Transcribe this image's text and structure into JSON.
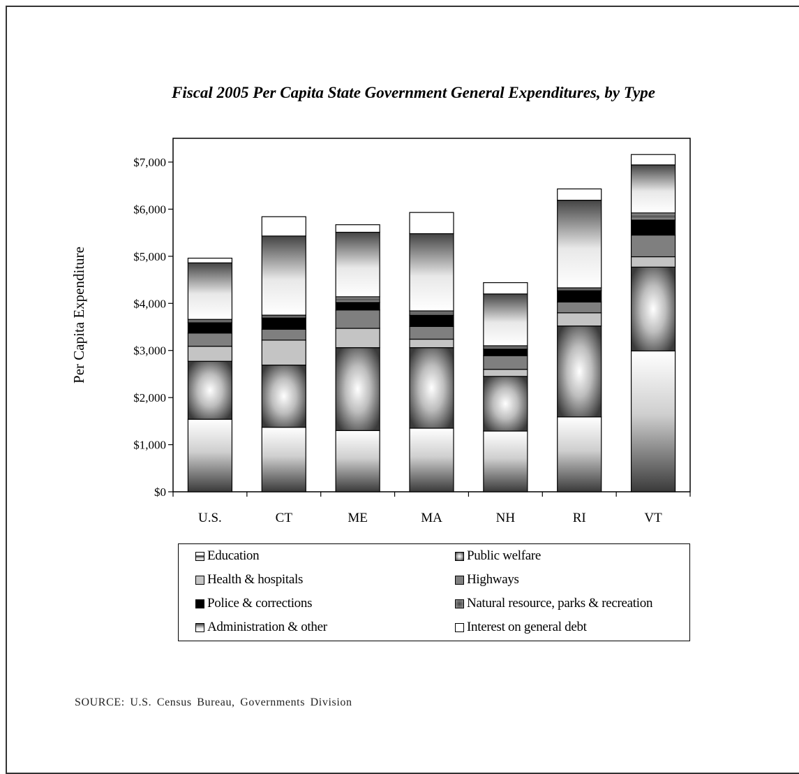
{
  "chart_data": {
    "type": "bar",
    "stacked": true,
    "title": "Fiscal 2005 Per Capita State Government General Expenditures, by Type",
    "xlabel": "",
    "ylabel": "Per Capita Expenditure",
    "ylim": [
      0,
      7500
    ],
    "yticks": [
      0,
      1000,
      2000,
      3000,
      4000,
      5000,
      6000,
      7000
    ],
    "ytick_labels": [
      "$0",
      "$1,000",
      "$2,000",
      "$3,000",
      "$4,000",
      "$5,000",
      "$6,000",
      "$7,000"
    ],
    "grid": false,
    "legend_position": "bottom",
    "categories": [
      "U.S.",
      "CT",
      "ME",
      "MA",
      "NH",
      "RI",
      "VT"
    ],
    "series": [
      {
        "name": "Education",
        "values": [
          1540,
          1370,
          1300,
          1350,
          1290,
          1590,
          2990
        ]
      },
      {
        "name": "Public welfare",
        "values": [
          1230,
          1320,
          1760,
          1710,
          1160,
          1930,
          1780
        ]
      },
      {
        "name": "Health & hospitals",
        "values": [
          320,
          530,
          410,
          180,
          150,
          280,
          220
        ]
      },
      {
        "name": "Highways",
        "values": [
          280,
          230,
          390,
          270,
          290,
          230,
          460
        ]
      },
      {
        "name": "Police & corrections",
        "values": [
          220,
          240,
          160,
          240,
          140,
          240,
          320
        ]
      },
      {
        "name": "Natural resource, parks & recreation",
        "values": [
          70,
          60,
          120,
          90,
          70,
          60,
          150
        ]
      },
      {
        "name": "Administration & other",
        "values": [
          1200,
          1680,
          1370,
          1640,
          1100,
          1860,
          1020
        ]
      },
      {
        "name": "Interest on general debt",
        "values": [
          100,
          410,
          160,
          450,
          240,
          240,
          220
        ]
      }
    ]
  },
  "legend": {
    "items": [
      {
        "label": "Education",
        "color": "#bdbdbd"
      },
      {
        "label": "Public welfare",
        "color": "#555555"
      },
      {
        "label": "Health & hospitals",
        "color": "#c4c4c4"
      },
      {
        "label": "Highways",
        "color": "#7f7f7f"
      },
      {
        "label": "Police & corrections",
        "color": "#000000"
      },
      {
        "label": "Natural resource, parks & recreation",
        "color": "#808080"
      },
      {
        "label": "Administration & other",
        "color": "#8a8a8a"
      },
      {
        "label": "Interest on general debt",
        "color": "#ffffff"
      }
    ]
  },
  "source": "SOURCE:  U.S. Census Bureau, Governments Division"
}
